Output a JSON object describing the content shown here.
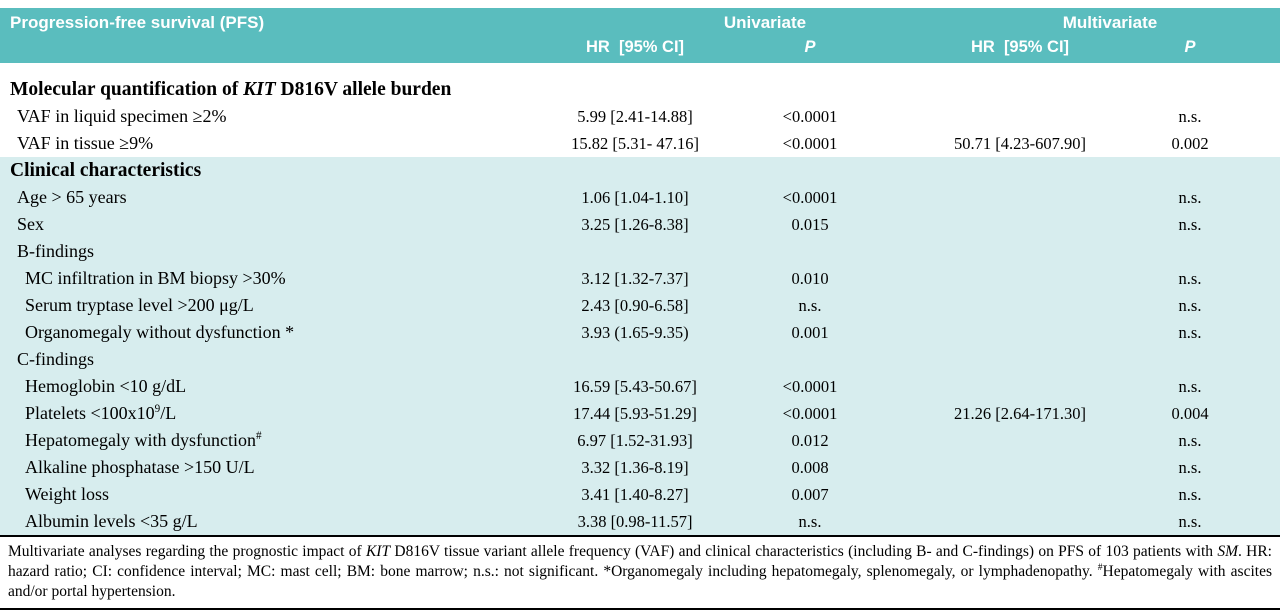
{
  "colors": {
    "header_bg": "#5abdbe",
    "section_alt_bg": "#d7edee",
    "header_text": "#ffffff",
    "body_text": "#000000",
    "rule": "#000000"
  },
  "table": {
    "title": "Progression-free survival (PFS)",
    "groups": [
      "Univariate",
      "Multivariate"
    ],
    "columns": {
      "uni_hr": "HR  [95% CI]",
      "uni_p": "P",
      "multi_hr": "HR  [95% CI]",
      "multi_p": "P"
    },
    "sections": [
      {
        "id": "molecular-quantification",
        "style": "white",
        "heading": [
          {
            "text": "Molecular quantification of "
          },
          {
            "text": "KIT",
            "italic": true
          },
          {
            "text": " D816V allele burden"
          }
        ],
        "rows": [
          {
            "label": "VAF in liquid specimen ≥2%",
            "indent": 1,
            "uni_hr": "5.99 [2.41-14.88]",
            "uni_p": "<0.0001",
            "multi_hr": "",
            "multi_p": "n.s."
          },
          {
            "label": "VAF in tissue ≥9%",
            "indent": 1,
            "uni_hr": "15.82 [5.31- 47.16]",
            "uni_p": "<0.0001",
            "multi_hr": "50.71 [4.23-607.90]",
            "multi_p": "0.002"
          }
        ]
      },
      {
        "id": "clinical-characteristics",
        "style": "alt",
        "heading": [
          {
            "text": "Clinical characteristics"
          }
        ],
        "rows": [
          {
            "label": "Age > 65 years",
            "indent": 1,
            "uni_hr": "1.06 [1.04-1.10]",
            "uni_p": "<0.0001",
            "multi_hr": "",
            "multi_p": "n.s."
          },
          {
            "label": "Sex",
            "indent": 1,
            "uni_hr": "3.25 [1.26-8.38]",
            "uni_p": "0.015",
            "multi_hr": "",
            "multi_p": "n.s."
          },
          {
            "label": "B-findings",
            "indent": 1,
            "uni_hr": "",
            "uni_p": "",
            "multi_hr": "",
            "multi_p": ""
          },
          {
            "label": "MC infiltration in BM biopsy >30%",
            "indent": 2,
            "uni_hr": "3.12 [1.32-7.37]",
            "uni_p": "0.010",
            "multi_hr": "",
            "multi_p": "n.s."
          },
          {
            "label": "Serum tryptase level >200 μg/L",
            "indent": 2,
            "uni_hr": "2.43 [0.90-6.58]",
            "uni_p": "n.s.",
            "multi_hr": "",
            "multi_p": "n.s."
          },
          {
            "label": "Organomegaly without dysfunction *",
            "indent": 2,
            "uni_hr": "3.93 (1.65-9.35)",
            "uni_p": "0.001",
            "multi_hr": "",
            "multi_p": "n.s."
          },
          {
            "label": "C-findings",
            "indent": 1,
            "uni_hr": "",
            "uni_p": "",
            "multi_hr": "",
            "multi_p": ""
          },
          {
            "label": "Hemoglobin <10 g/dL",
            "indent": 2,
            "uni_hr": "16.59 [5.43-50.67]",
            "uni_p": "<0.0001",
            "multi_hr": "",
            "multi_p": "n.s."
          },
          {
            "label": "Platelets <100x10",
            "label_sup": "9",
            "label_after": "/L",
            "indent": 2,
            "uni_hr": "17.44 [5.93-51.29]",
            "uni_p": "<0.0001",
            "multi_hr": "21.26 [2.64-171.30]",
            "multi_p": "0.004"
          },
          {
            "label": "Hepatomegaly with dysfunction",
            "label_sup": "#",
            "label_after": "",
            "indent": 2,
            "uni_hr": "6.97 [1.52-31.93]",
            "uni_p": "0.012",
            "multi_hr": "",
            "multi_p": "n.s."
          },
          {
            "label": "Alkaline phosphatase >150 U/L",
            "indent": 2,
            "uni_hr": "3.32 [1.36-8.19]",
            "uni_p": "0.008",
            "multi_hr": "",
            "multi_p": "n.s."
          },
          {
            "label": "Weight loss",
            "indent": 2,
            "uni_hr": "3.41 [1.40-8.27]",
            "uni_p": "0.007",
            "multi_hr": "",
            "multi_p": "n.s."
          },
          {
            "label": "Albumin levels <35 g/L",
            "indent": 2,
            "uni_hr": "3.38 [0.98-11.57]",
            "uni_p": "n.s.",
            "multi_hr": "",
            "multi_p": "n.s."
          }
        ]
      }
    ]
  },
  "footnote": {
    "parts": [
      {
        "text": "Multivariate analyses regarding the prognostic impact of "
      },
      {
        "text": "KIT",
        "italic": true
      },
      {
        "text": " D816V tissue variant allele frequency (VAF) and clinical characteristics (including B- and C-findings) on PFS of 103 patients with "
      },
      {
        "text": "SM",
        "italic": true
      },
      {
        "text": ". HR: hazard ratio; CI: confidence interval; MC: mast cell; BM: bone marrow; n.s.: not significant. *Organomegaly including hepatomegaly, splenomegaly, or lymphadenopathy. "
      },
      {
        "text": "#",
        "sup": true
      },
      {
        "text": "Hepatomegaly with ascites and/or portal hypertension."
      }
    ]
  }
}
